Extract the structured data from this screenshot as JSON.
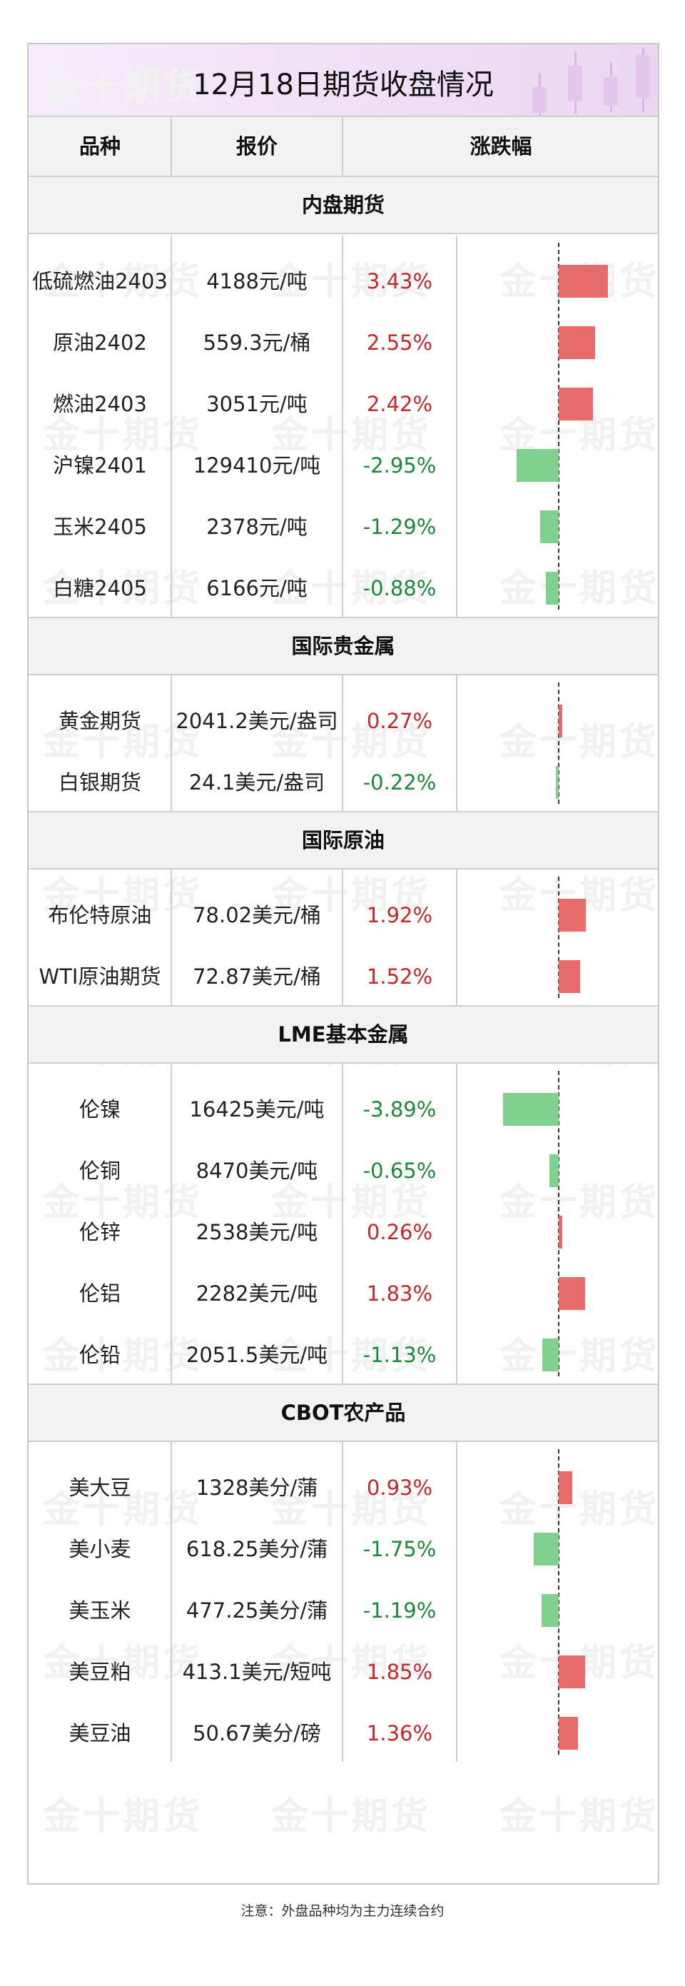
{
  "title": "12月18日期货收盘情况",
  "watermark": "金十期货",
  "columns": [
    "品种",
    "报价",
    "涨跌幅"
  ],
  "note": "注意：外盘品种均为主力连续合约",
  "colors": {
    "positive": "#c9252c",
    "negative": "#1a8a3a",
    "bar_positive": "#e86b6b",
    "bar_negative": "#7fd18d"
  },
  "chart_data": {
    "type": "bar",
    "orientation": "horizontal",
    "unit": "%",
    "sections": [
      {
        "name": "内盘期货",
        "rows": [
          {
            "name": "低硫燃油2403",
            "price": "4188元/吨",
            "change": 3.43,
            "change_label": "3.43%"
          },
          {
            "name": "原油2402",
            "price": "559.3元/桶",
            "change": 2.55,
            "change_label": "2.55%"
          },
          {
            "name": "燃油2403",
            "price": "3051元/吨",
            "change": 2.42,
            "change_label": "2.42%"
          },
          {
            "name": "沪镍2401",
            "price": "129410元/吨",
            "change": -2.95,
            "change_label": "-2.95%"
          },
          {
            "name": "玉米2405",
            "price": "2378元/吨",
            "change": -1.29,
            "change_label": "-1.29%"
          },
          {
            "name": "白糖2405",
            "price": "6166元/吨",
            "change": -0.88,
            "change_label": "-0.88%"
          }
        ]
      },
      {
        "name": "国际贵金属",
        "rows": [
          {
            "name": "黄金期货",
            "price": "2041.2美元/盎司",
            "change": 0.27,
            "change_label": "0.27%"
          },
          {
            "name": "白银期货",
            "price": "24.1美元/盎司",
            "change": -0.22,
            "change_label": "-0.22%"
          }
        ]
      },
      {
        "name": "国际原油",
        "rows": [
          {
            "name": "布伦特原油",
            "price": "78.02美元/桶",
            "change": 1.92,
            "change_label": "1.92%"
          },
          {
            "name": "WTI原油期货",
            "price": "72.87美元/桶",
            "change": 1.52,
            "change_label": "1.52%"
          }
        ]
      },
      {
        "name": "LME基本金属",
        "rows": [
          {
            "name": "伦镍",
            "price": "16425美元/吨",
            "change": -3.89,
            "change_label": "-3.89%"
          },
          {
            "name": "伦铜",
            "price": "8470美元/吨",
            "change": -0.65,
            "change_label": "-0.65%"
          },
          {
            "name": "伦锌",
            "price": "2538美元/吨",
            "change": 0.26,
            "change_label": "0.26%"
          },
          {
            "name": "伦铝",
            "price": "2282美元/吨",
            "change": 1.83,
            "change_label": "1.83%"
          },
          {
            "name": "伦铅",
            "price": "2051.5美元/吨",
            "change": -1.13,
            "change_label": "-1.13%"
          }
        ]
      },
      {
        "name": "CBOT农产品",
        "rows": [
          {
            "name": "美大豆",
            "price": "1328美分/蒲",
            "change": 0.93,
            "change_label": "0.93%"
          },
          {
            "name": "美小麦",
            "price": "618.25美分/蒲",
            "change": -1.75,
            "change_label": "-1.75%"
          },
          {
            "name": "美玉米",
            "price": "477.25美分/蒲",
            "change": -1.19,
            "change_label": "-1.19%"
          },
          {
            "name": "美豆粕",
            "price": "413.1美元/短吨",
            "change": 1.85,
            "change_label": "1.85%"
          },
          {
            "name": "美豆油",
            "price": "50.67美分/磅",
            "change": 1.36,
            "change_label": "1.36%"
          }
        ]
      }
    ]
  }
}
